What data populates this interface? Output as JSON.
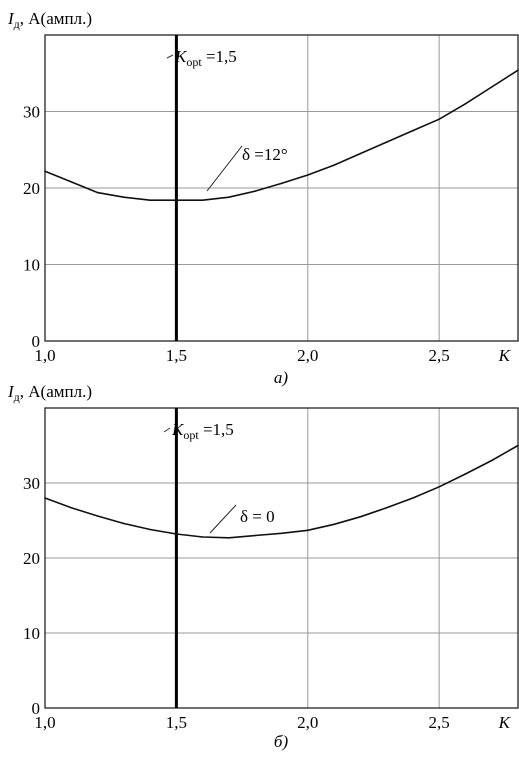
{
  "chart_data": [
    {
      "type": "line",
      "panel_label": "a)",
      "ylabel_symbol": "I",
      "ylabel_subscript": "д",
      "ylabel_rest": ", A(ампл.)",
      "xlabel": "K",
      "xlim": [
        1.0,
        2.8
      ],
      "ylim": [
        0,
        40
      ],
      "x_ticks": [
        1.0,
        1.5,
        2.0,
        2.5
      ],
      "x_tick_labels": [
        "1,0",
        "1,5",
        "2,0",
        "2,5"
      ],
      "y_ticks": [
        0,
        10,
        20,
        30
      ],
      "y_tick_labels": [
        "0",
        "10",
        "20",
        "30"
      ],
      "grid": true,
      "optimum_line": {
        "x": 1.5,
        "label_symbol": "K",
        "label_subscript": "opt",
        "label_value": " =1,5"
      },
      "annotation": "δ =12°",
      "series": [
        {
          "x": [
            1.0,
            1.1,
            1.2,
            1.3,
            1.4,
            1.5,
            1.6,
            1.7,
            1.8,
            1.9,
            2.0,
            2.1,
            2.2,
            2.3,
            2.4,
            2.5,
            2.6,
            2.7,
            2.8
          ],
          "values": [
            22.2,
            20.8,
            19.4,
            18.8,
            18.4,
            18.4,
            18.4,
            18.8,
            19.6,
            20.6,
            21.7,
            23.0,
            24.5,
            26.0,
            27.5,
            29.0,
            31.0,
            33.2,
            35.4
          ]
        }
      ]
    },
    {
      "type": "line",
      "panel_label": "б)",
      "ylabel_symbol": "I",
      "ylabel_subscript": "д",
      "ylabel_rest": ", A(ампл.)",
      "xlabel": "K",
      "xlim": [
        1.0,
        2.8
      ],
      "ylim": [
        0,
        40
      ],
      "x_ticks": [
        1.0,
        1.5,
        2.0,
        2.5
      ],
      "x_tick_labels": [
        "1,0",
        "1,5",
        "2,0",
        "2,5"
      ],
      "y_ticks": [
        0,
        10,
        20,
        30
      ],
      "y_tick_labels": [
        "0",
        "10",
        "20",
        "30"
      ],
      "grid": true,
      "optimum_line": {
        "x": 1.5,
        "label_symbol": "K",
        "label_subscript": "opt",
        "label_value": " =1,5"
      },
      "annotation": "δ = 0",
      "series": [
        {
          "x": [
            1.0,
            1.1,
            1.2,
            1.3,
            1.4,
            1.5,
            1.6,
            1.7,
            1.8,
            1.9,
            2.0,
            2.1,
            2.2,
            2.3,
            2.4,
            2.5,
            2.6,
            2.7,
            2.8
          ],
          "values": [
            28.0,
            26.7,
            25.6,
            24.6,
            23.8,
            23.2,
            22.8,
            22.7,
            23.0,
            23.3,
            23.7,
            24.5,
            25.5,
            26.7,
            28.0,
            29.5,
            31.2,
            33.0,
            35.0
          ]
        }
      ]
    }
  ]
}
